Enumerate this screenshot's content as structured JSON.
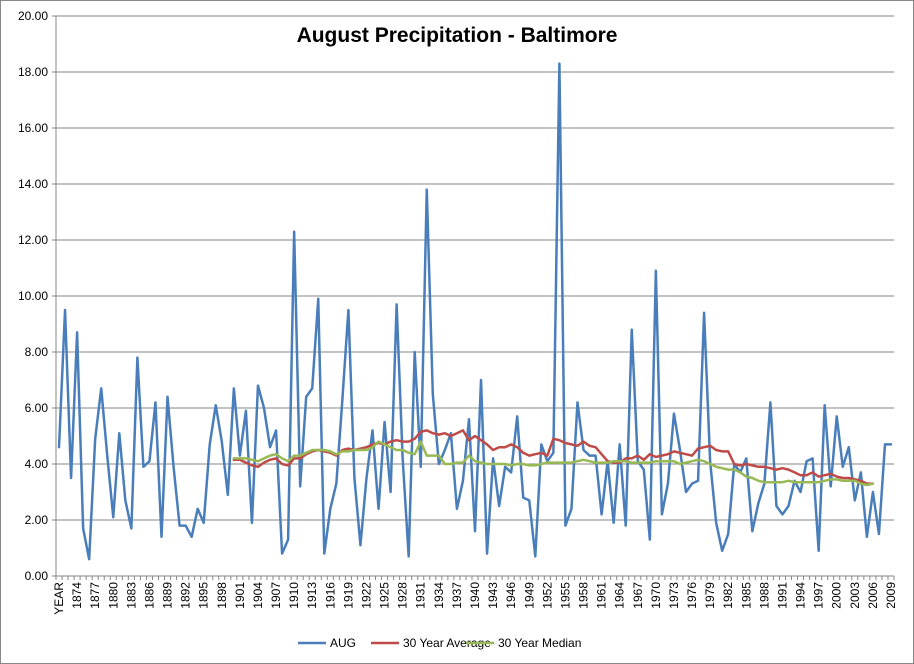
{
  "chart_data": {
    "type": "line",
    "title": "August Precipitation - Baltimore",
    "ylim": [
      0,
      20
    ],
    "yticks": [
      "0.00",
      "2.00",
      "4.00",
      "6.00",
      "8.00",
      "10.00",
      "12.00",
      "14.00",
      "16.00",
      "18.00",
      "20.00"
    ],
    "x_first_label": "YEAR",
    "x_start_year": 1871,
    "x_end_year": 2009,
    "xtick_labels": [
      "YEAR",
      "1874",
      "1877",
      "1880",
      "1883",
      "1886",
      "1889",
      "1892",
      "1895",
      "1898",
      "1901",
      "1904",
      "1907",
      "1910",
      "1913",
      "1916",
      "1919",
      "1922",
      "1925",
      "1928",
      "1931",
      "1934",
      "1937",
      "1940",
      "1943",
      "1946",
      "1949",
      "1952",
      "1955",
      "1958",
      "1961",
      "1964",
      "1967",
      "1970",
      "1973",
      "1976",
      "1979",
      "1982",
      "1985",
      "1988",
      "1991",
      "1994",
      "1997",
      "2000",
      "2003",
      "2006",
      "2009"
    ],
    "legend_position": "bottom",
    "grid": true,
    "series": [
      {
        "name": "AUG",
        "color": "#4a7ebb",
        "start_index": 0,
        "values": [
          4.6,
          9.5,
          3.5,
          8.7,
          1.7,
          0.6,
          4.9,
          6.7,
          4.3,
          2.1,
          5.1,
          2.7,
          1.7,
          7.8,
          3.9,
          4.1,
          6.2,
          1.4,
          6.4,
          3.9,
          1.8,
          1.8,
          1.4,
          2.4,
          1.9,
          4.7,
          6.1,
          4.8,
          2.9,
          6.7,
          4.3,
          5.9,
          1.9,
          6.8,
          6.0,
          4.6,
          5.2,
          0.8,
          1.3,
          12.3,
          3.2,
          6.4,
          6.7,
          9.9,
          0.8,
          2.4,
          3.3,
          6.3,
          9.5,
          3.5,
          1.1,
          3.5,
          5.2,
          2.4,
          5.5,
          3.0,
          9.7,
          4.2,
          0.7,
          8.0,
          3.9,
          13.8,
          6.5,
          4.0,
          4.5,
          5.1,
          2.4,
          3.4,
          5.6,
          1.6,
          7.0,
          0.8,
          4.2,
          2.5,
          3.9,
          3.7,
          5.7,
          2.8,
          2.7,
          0.7,
          4.7,
          4.1,
          4.4,
          18.3,
          1.8,
          2.4,
          6.2,
          4.5,
          4.3,
          4.3,
          2.2,
          4.1,
          1.9,
          4.7,
          1.8,
          8.8,
          4.1,
          3.8,
          1.3,
          10.9,
          2.2,
          3.3,
          5.8,
          4.5,
          3.0,
          3.3,
          3.4,
          9.4,
          4.1,
          1.9,
          0.9,
          1.5,
          4.0,
          3.7,
          4.2,
          1.6,
          2.6,
          3.3,
          6.2,
          2.5,
          2.2,
          2.5,
          3.4,
          3.0,
          4.1,
          4.2,
          0.9,
          6.1,
          3.2,
          5.7,
          3.9,
          4.6,
          2.7,
          3.7,
          1.4,
          3.0,
          1.5,
          4.7,
          4.7
        ]
      },
      {
        "name": "30 Year Average",
        "color": "#be4b48",
        "start_index": 29,
        "values": [
          4.15,
          4.15,
          4.05,
          3.95,
          3.9,
          4.05,
          4.15,
          4.2,
          4.0,
          3.95,
          4.2,
          4.2,
          4.35,
          4.45,
          4.5,
          4.45,
          4.4,
          4.3,
          4.5,
          4.55,
          4.5,
          4.55,
          4.6,
          4.7,
          4.75,
          4.7,
          4.8,
          4.85,
          4.8,
          4.8,
          4.9,
          5.15,
          5.2,
          5.1,
          5.05,
          5.1,
          5.0,
          5.1,
          5.2,
          4.85,
          5.0,
          4.85,
          4.7,
          4.5,
          4.6,
          4.6,
          4.7,
          4.6,
          4.4,
          4.3,
          4.35,
          4.4,
          4.3,
          4.9,
          4.85,
          4.75,
          4.7,
          4.65,
          4.8,
          4.65,
          4.6,
          4.35,
          4.1,
          4.05,
          4.05,
          4.2,
          4.2,
          4.3,
          4.15,
          4.35,
          4.25,
          4.3,
          4.35,
          4.45,
          4.4,
          4.35,
          4.3,
          4.55,
          4.6,
          4.65,
          4.5,
          4.45,
          4.45,
          4.0,
          3.95,
          4.0,
          3.95,
          3.9,
          3.9,
          3.85,
          3.8,
          3.85,
          3.8,
          3.7,
          3.6,
          3.6,
          3.7,
          3.55,
          3.6,
          3.65,
          3.55,
          3.5,
          3.5,
          3.45,
          3.4,
          3.3,
          3.3
        ]
      },
      {
        "name": "30 Year Median",
        "color": "#98b954",
        "start_index": 29,
        "values": [
          4.2,
          4.2,
          4.2,
          4.15,
          4.1,
          4.2,
          4.3,
          4.35,
          4.2,
          4.1,
          4.3,
          4.3,
          4.4,
          4.5,
          4.5,
          4.5,
          4.45,
          4.35,
          4.45,
          4.45,
          4.5,
          4.5,
          4.5,
          4.6,
          4.8,
          4.7,
          4.6,
          4.5,
          4.5,
          4.4,
          4.35,
          4.8,
          4.3,
          4.3,
          4.3,
          4.0,
          4.0,
          4.05,
          4.05,
          4.3,
          4.1,
          4.05,
          4.0,
          4.0,
          4.0,
          4.0,
          3.95,
          4.0,
          4.0,
          3.95,
          3.95,
          4.0,
          4.05,
          4.05,
          4.05,
          4.05,
          4.05,
          4.1,
          4.15,
          4.1,
          4.05,
          4.05,
          4.05,
          4.1,
          4.1,
          4.1,
          4.05,
          4.05,
          4.05,
          4.05,
          4.1,
          4.1,
          4.1,
          4.1,
          4.0,
          4.05,
          4.1,
          4.15,
          4.1,
          4.0,
          3.9,
          3.85,
          3.8,
          3.8,
          3.7,
          3.55,
          3.5,
          3.4,
          3.35,
          3.35,
          3.35,
          3.35,
          3.4,
          3.35,
          3.35,
          3.35,
          3.35,
          3.35,
          3.4,
          3.45,
          3.45,
          3.4,
          3.4,
          3.4,
          3.3,
          3.25,
          3.3
        ]
      }
    ]
  }
}
